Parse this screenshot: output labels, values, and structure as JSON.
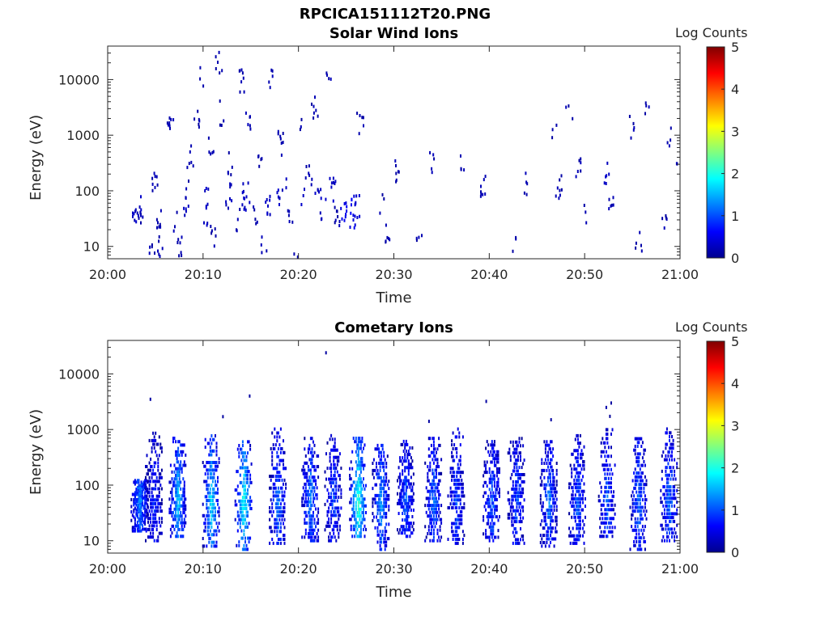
{
  "figure": {
    "title": "RPCICA151112T20.PNG"
  },
  "colorbar": {
    "label": "Log Counts",
    "ticks": [
      "0",
      "1",
      "2",
      "3",
      "4",
      "5"
    ],
    "range": [
      0,
      5
    ],
    "colormap": "jet",
    "colors": [
      "#00008f",
      "#0000ff",
      "#0080ff",
      "#00ffff",
      "#80ff80",
      "#ffff00",
      "#ff8000",
      "#ff0000",
      "#800000"
    ]
  },
  "chart_data": [
    {
      "type": "heatmap",
      "title": "Solar Wind Ions",
      "xlabel": "Time",
      "ylabel": "Energy (eV)",
      "yscale": "log",
      "xlim": [
        "20:00",
        "21:00"
      ],
      "ylim": [
        6,
        40000
      ],
      "xticks": [
        "20:00",
        "20:10",
        "20:20",
        "20:30",
        "20:40",
        "20:50",
        "21:00"
      ],
      "yticks": [
        "10",
        "100",
        "1000",
        "10000"
      ],
      "colorbar_label": "Log Counts",
      "points": [
        {
          "t": 2.8,
          "e": 40,
          "v": 0.2
        },
        {
          "t": 3.1,
          "e": 55,
          "v": 0.2
        },
        {
          "t": 3.3,
          "e": 30,
          "v": 0.1
        },
        {
          "t": 4.5,
          "e": 7,
          "v": 0.1
        },
        {
          "t": 4.8,
          "e": 150,
          "v": 0.1
        },
        {
          "t": 5.3,
          "e": 30,
          "v": 0.1
        },
        {
          "t": 5.4,
          "e": 9,
          "v": 0.1
        },
        {
          "t": 6.5,
          "e": 1300,
          "v": 0.1
        },
        {
          "t": 7.2,
          "e": 30,
          "v": 0.1
        },
        {
          "t": 7.5,
          "e": 9,
          "v": 0.1
        },
        {
          "t": 8.2,
          "e": 60,
          "v": 0.2
        },
        {
          "t": 8.3,
          "e": 120,
          "v": 0.1
        },
        {
          "t": 8.6,
          "e": 400,
          "v": 0.1
        },
        {
          "t": 9.2,
          "e": 2000,
          "v": 0.1
        },
        {
          "t": 9.6,
          "e": 11000,
          "v": 0.1
        },
        {
          "t": 10.1,
          "e": 35,
          "v": 0.2
        },
        {
          "t": 10.3,
          "e": 80,
          "v": 0.2
        },
        {
          "t": 10.7,
          "e": 700,
          "v": 0.1
        },
        {
          "t": 11.0,
          "e": 14,
          "v": 0.1
        },
        {
          "t": 11.6,
          "e": 22000,
          "v": 0.1
        },
        {
          "t": 12.0,
          "e": 2500,
          "v": 0.1
        },
        {
          "t": 12.6,
          "e": 80,
          "v": 0.2
        },
        {
          "t": 12.8,
          "e": 300,
          "v": 0.1
        },
        {
          "t": 13.5,
          "e": 30,
          "v": 0.1
        },
        {
          "t": 14.0,
          "e": 10000,
          "v": 0.1
        },
        {
          "t": 14.3,
          "e": 90,
          "v": 0.2
        },
        {
          "t": 14.5,
          "e": 45,
          "v": 0.2
        },
        {
          "t": 14.7,
          "e": 2000,
          "v": 0.1
        },
        {
          "t": 15.4,
          "e": 35,
          "v": 0.1
        },
        {
          "t": 15.8,
          "e": 400,
          "v": 0.1
        },
        {
          "t": 16.3,
          "e": 9,
          "v": 0.1
        },
        {
          "t": 16.7,
          "e": 60,
          "v": 0.2
        },
        {
          "t": 17.1,
          "e": 9000,
          "v": 0.1
        },
        {
          "t": 17.6,
          "e": 80,
          "v": 0.2
        },
        {
          "t": 18.0,
          "e": 700,
          "v": 0.1
        },
        {
          "t": 18.5,
          "e": 100,
          "v": 0.2
        },
        {
          "t": 19.0,
          "e": 30,
          "v": 0.1
        },
        {
          "t": 19.5,
          "e": 8,
          "v": 0.1
        },
        {
          "t": 20.0,
          "e": 1500,
          "v": 0.1
        },
        {
          "t": 20.5,
          "e": 70,
          "v": 0.2
        },
        {
          "t": 21.0,
          "e": 200,
          "v": 0.1
        },
        {
          "t": 21.6,
          "e": 3000,
          "v": 0.1
        },
        {
          "t": 22.0,
          "e": 90,
          "v": 0.2
        },
        {
          "t": 22.5,
          "e": 45,
          "v": 0.2
        },
        {
          "t": 23.0,
          "e": 12000,
          "v": 0.1
        },
        {
          "t": 23.5,
          "e": 100,
          "v": 0.2
        },
        {
          "t": 24.0,
          "e": 35,
          "v": 0.1
        },
        {
          "t": 24.7,
          "e": 40,
          "v": 0.4
        },
        {
          "t": 25.2,
          "e": 60,
          "v": 0.5
        },
        {
          "t": 25.6,
          "e": 35,
          "v": 0.4
        },
        {
          "t": 26.0,
          "e": 50,
          "v": 0.3
        },
        {
          "t": 26.4,
          "e": 1500,
          "v": 0.1
        },
        {
          "t": 28.8,
          "e": 55,
          "v": 0.1
        },
        {
          "t": 29.2,
          "e": 20,
          "v": 0.1
        },
        {
          "t": 30.3,
          "e": 230,
          "v": 0.1
        },
        {
          "t": 32.5,
          "e": 10,
          "v": 0.1
        },
        {
          "t": 33.8,
          "e": 300,
          "v": 0.1
        },
        {
          "t": 37.0,
          "e": 300,
          "v": 0.1
        },
        {
          "t": 39.2,
          "e": 130,
          "v": 0.1
        },
        {
          "t": 42.6,
          "e": 12,
          "v": 0.1
        },
        {
          "t": 43.8,
          "e": 140,
          "v": 0.1
        },
        {
          "t": 46.7,
          "e": 1500,
          "v": 0.1
        },
        {
          "t": 47.2,
          "e": 120,
          "v": 0.1
        },
        {
          "t": 48.3,
          "e": 2000,
          "v": 0.1
        },
        {
          "t": 49.2,
          "e": 250,
          "v": 0.1
        },
        {
          "t": 50.2,
          "e": 40,
          "v": 0.1
        },
        {
          "t": 52.3,
          "e": 200,
          "v": 0.2
        },
        {
          "t": 52.8,
          "e": 50,
          "v": 0.1
        },
        {
          "t": 54.9,
          "e": 1300,
          "v": 0.1
        },
        {
          "t": 55.6,
          "e": 12,
          "v": 0.1
        },
        {
          "t": 56.6,
          "e": 2700,
          "v": 0.1
        },
        {
          "t": 58.2,
          "e": 22,
          "v": 0.1
        },
        {
          "t": 58.9,
          "e": 1000,
          "v": 0.1
        },
        {
          "t": 59.7,
          "e": 300,
          "v": 0.1
        }
      ]
    },
    {
      "type": "heatmap",
      "title": "Cometary Ions",
      "xlabel": "Time",
      "ylabel": "Energy (eV)",
      "yscale": "log",
      "xlim": [
        "20:00",
        "21:00"
      ],
      "ylim": [
        6,
        40000
      ],
      "xticks": [
        "20:00",
        "20:10",
        "20:20",
        "20:30",
        "20:40",
        "20:50",
        "21:00"
      ],
      "yticks": [
        "10",
        "100",
        "1000",
        "10000"
      ],
      "colorbar_label": "Log Counts",
      "bursts": [
        {
          "t": 3.3,
          "e_low": 15,
          "e_high": 130,
          "peak": 1.3
        },
        {
          "t": 4.8,
          "e_low": 10,
          "e_high": 1000,
          "peak": 0.8
        },
        {
          "t": 7.3,
          "e_low": 12,
          "e_high": 800,
          "peak": 1.6
        },
        {
          "t": 10.8,
          "e_low": 8,
          "e_high": 900,
          "peak": 1.8
        },
        {
          "t": 14.2,
          "e_low": 7,
          "e_high": 700,
          "peak": 2.0
        },
        {
          "t": 17.8,
          "e_low": 9,
          "e_high": 1200,
          "peak": 1.2
        },
        {
          "t": 21.2,
          "e_low": 10,
          "e_high": 800,
          "peak": 1.3
        },
        {
          "t": 23.6,
          "e_low": 10,
          "e_high": 900,
          "peak": 1.0
        },
        {
          "t": 26.2,
          "e_low": 12,
          "e_high": 800,
          "peak": 2.2
        },
        {
          "t": 28.6,
          "e_low": 7,
          "e_high": 600,
          "peak": 1.4
        },
        {
          "t": 31.2,
          "e_low": 12,
          "e_high": 700,
          "peak": 1.1
        },
        {
          "t": 34.1,
          "e_low": 10,
          "e_high": 800,
          "peak": 1.2
        },
        {
          "t": 36.5,
          "e_low": 9,
          "e_high": 1200,
          "peak": 1.0
        },
        {
          "t": 40.2,
          "e_low": 10,
          "e_high": 700,
          "peak": 1.1
        },
        {
          "t": 42.8,
          "e_low": 9,
          "e_high": 800,
          "peak": 1.0
        },
        {
          "t": 46.2,
          "e_low": 8,
          "e_high": 700,
          "peak": 1.2
        },
        {
          "t": 49.2,
          "e_low": 9,
          "e_high": 900,
          "peak": 1.1
        },
        {
          "t": 52.3,
          "e_low": 12,
          "e_high": 3000,
          "peak": 1.1
        },
        {
          "t": 55.6,
          "e_low": 7,
          "e_high": 800,
          "peak": 1.2
        },
        {
          "t": 58.8,
          "e_low": 10,
          "e_high": 1200,
          "peak": 1.2
        }
      ],
      "sparse": [
        {
          "t": 4.4,
          "e": 3500,
          "v": 0.1
        },
        {
          "t": 14.8,
          "e": 4000,
          "v": 0.1
        },
        {
          "t": 22.8,
          "e": 24000,
          "v": 0.1
        },
        {
          "t": 39.6,
          "e": 3200,
          "v": 0.1
        },
        {
          "t": 52.7,
          "e": 3000,
          "v": 0.1
        },
        {
          "t": 12.0,
          "e": 1700,
          "v": 0.1
        },
        {
          "t": 33.6,
          "e": 1400,
          "v": 0.1
        },
        {
          "t": 46.4,
          "e": 1500,
          "v": 0.1
        }
      ]
    }
  ]
}
